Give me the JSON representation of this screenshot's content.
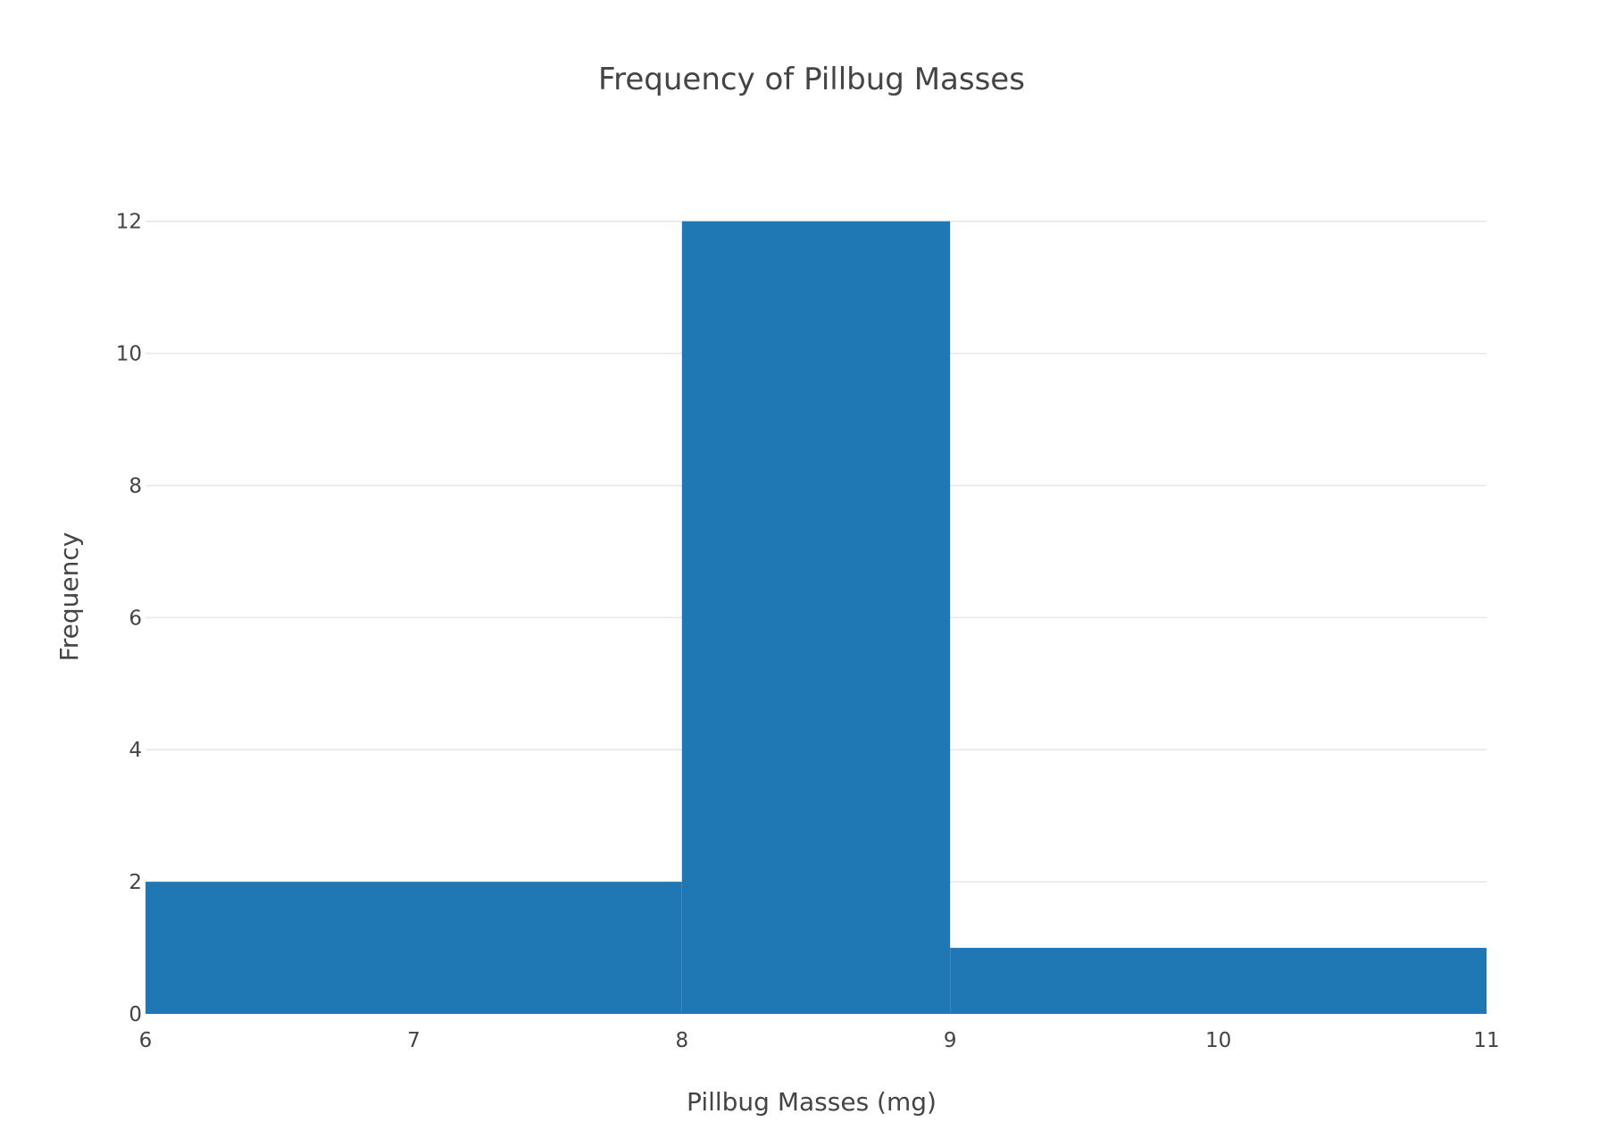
{
  "chart_data": {
    "type": "bar",
    "title": "Frequency of Pillbug Masses",
    "xlabel": "Pillbug Masses (mg)",
    "ylabel": "Frequency",
    "bins": [
      {
        "start": 6,
        "end": 8,
        "count": 2
      },
      {
        "start": 8,
        "end": 9,
        "count": 12
      },
      {
        "start": 9,
        "end": 11,
        "count": 1
      }
    ],
    "xlim": [
      6,
      11
    ],
    "ylim": [
      0,
      13.2
    ],
    "xticks": [
      6,
      7,
      8,
      9,
      10,
      11
    ],
    "yticks": [
      0,
      2,
      4,
      6,
      8,
      10,
      12
    ],
    "grid": true,
    "bar_color": "#1f77b4"
  }
}
